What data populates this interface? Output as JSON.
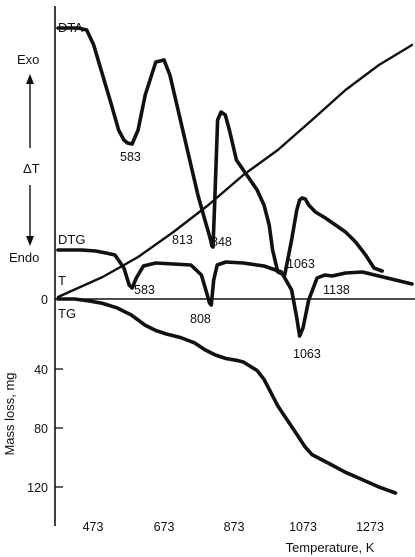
{
  "chart_data": {
    "type": "line",
    "xlabel": "Temperature, K",
    "x_ticks": [
      473,
      673,
      873,
      1073,
      1273
    ],
    "xlim": [
      373,
      1400
    ],
    "ylabel": "Mass loss, mg",
    "y_ticks": [
      0,
      40,
      80,
      120
    ],
    "ylim": [
      0,
      128
    ],
    "side_labels": {
      "exo": "Exo",
      "delta_t": "ΔT",
      "endo": "Endo"
    },
    "series": [
      {
        "name": "DTA",
        "x": [
          373,
          400,
          430,
          455,
          475,
          500,
          525,
          545,
          560,
          570,
          583,
          600,
          620,
          650,
          673,
          690,
          710,
          740,
          770,
          790,
          800,
          806,
          810,
          813,
          818,
          826,
          836,
          848,
          860,
          880,
          910,
          940,
          960,
          975,
          985,
          1000,
          1020,
          1040,
          1055,
          1063,
          1070,
          1080,
          1090,
          1110,
          1140,
          1170,
          1200,
          1230,
          1260,
          1285,
          1310
        ],
        "annotations": [
          "583",
          "813",
          "848",
          "1063"
        ]
      },
      {
        "name": "T",
        "x": [
          373,
          500,
          600,
          700,
          800,
          900,
          1000,
          1100,
          1200,
          1300,
          1400
        ]
      },
      {
        "name": "DTG",
        "x": [
          373,
          440,
          480,
          510,
          535,
          560,
          575,
          583,
          595,
          615,
          650,
          700,
          750,
          780,
          795,
          803,
          808,
          815,
          825,
          850,
          900,
          960,
          1010,
          1040,
          1055,
          1063,
          1073,
          1090,
          1115,
          1138,
          1160,
          1200,
          1250,
          1300,
          1350,
          1400
        ],
        "annotations": [
          "583",
          "808",
          "1063",
          "1138"
        ]
      },
      {
        "name": "TG",
        "x": [
          373,
          420,
          460,
          500,
          540,
          580,
          600,
          620,
          650,
          680,
          720,
          760,
          790,
          820,
          850,
          880,
          900,
          940,
          960,
          980,
          1000,
          1020,
          1040,
          1060,
          1080,
          1100,
          1150,
          1200,
          1250,
          1300,
          1350
        ],
        "y": [
          0,
          0,
          1,
          2.5,
          5,
          9,
          12,
          15,
          18,
          20,
          22,
          25,
          29,
          32,
          34,
          35,
          36,
          41,
          47,
          56,
          65,
          72,
          79,
          86,
          93,
          98,
          104,
          110,
          115,
          120,
          124
        ]
      }
    ]
  }
}
